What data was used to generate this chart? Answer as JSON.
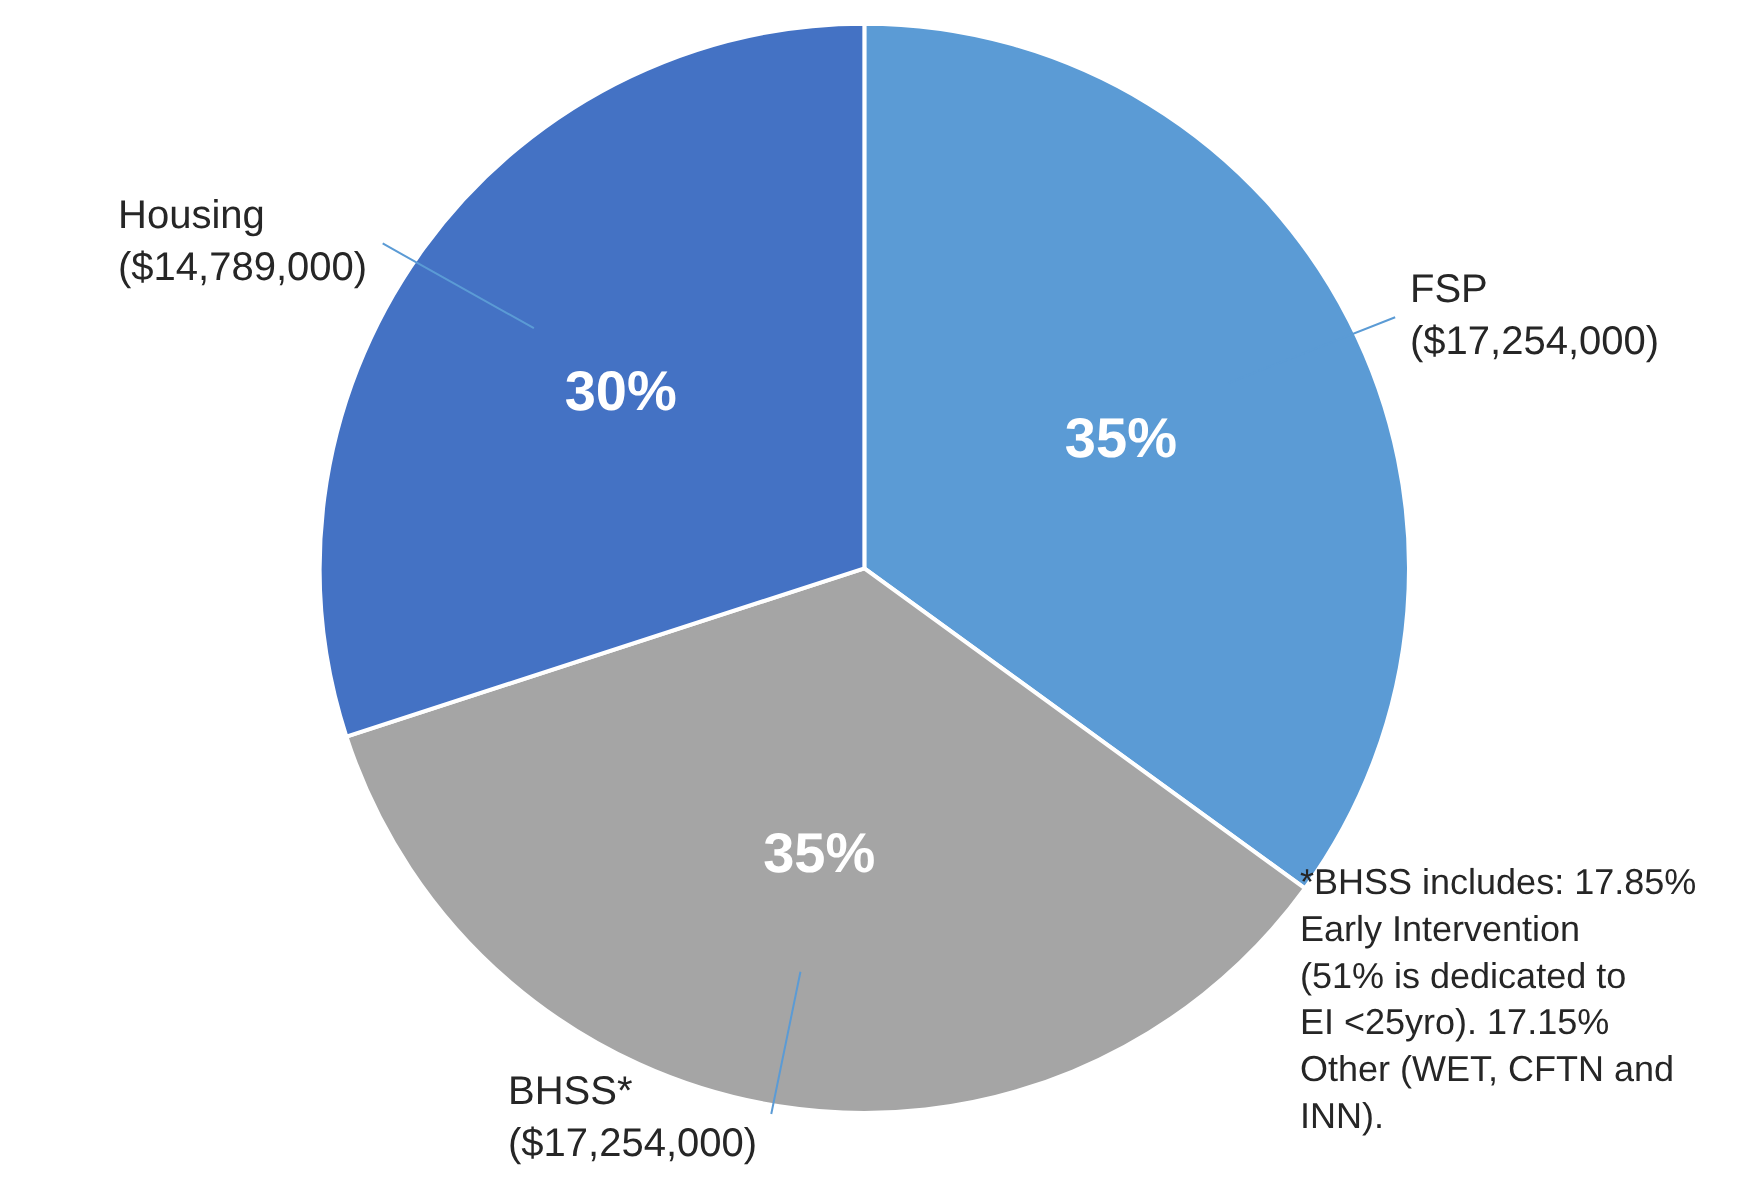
{
  "chart_data": {
    "type": "pie",
    "categories": [
      "FSP ($17,254,000)",
      "BHSS* ($17,254,000)",
      "Housing ($14,789,000)"
    ],
    "values": [
      35,
      35,
      30
    ],
    "colors": [
      "#5b9bd5",
      "#a5a5a5",
      "#4472c4"
    ],
    "value_labels": [
      "35%",
      "35%",
      "30%"
    ],
    "annotations": [
      "*BHSS includes: 17.85% Early Intervention (51% is dedicated to EI <25yro). 17.15% Other (WET, CFTN and INN)."
    ]
  }
}
